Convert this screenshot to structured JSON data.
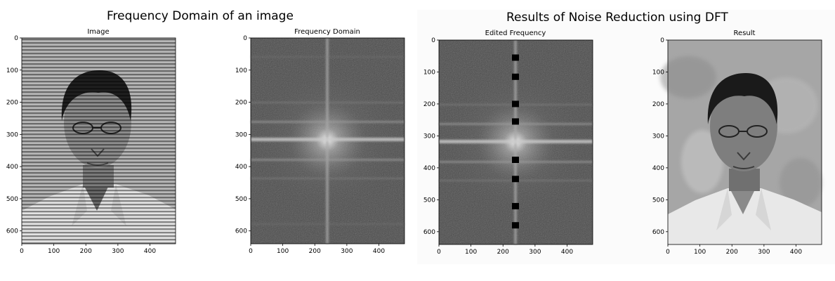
{
  "left_figure": {
    "title": "Frequency Domain of an image",
    "panels": [
      {
        "title": "Image",
        "kind": "photo-striped"
      },
      {
        "title": "Frequency Domain",
        "kind": "spectrum"
      }
    ]
  },
  "right_figure": {
    "title": "Results of Noise Reduction using DFT",
    "panels": [
      {
        "title": "Edited Frequency",
        "kind": "spectrum-masked"
      },
      {
        "title": "Result",
        "kind": "photo-clean"
      }
    ]
  },
  "axes": {
    "x_ticks": [
      0,
      100,
      200,
      300,
      400
    ],
    "y_ticks": [
      0,
      100,
      200,
      300,
      400,
      500,
      600
    ],
    "x_range": [
      0,
      480
    ],
    "y_range": [
      0,
      640
    ]
  },
  "mask_squares_y": [
    55,
    115,
    200,
    255,
    375,
    435,
    520,
    580
  ]
}
